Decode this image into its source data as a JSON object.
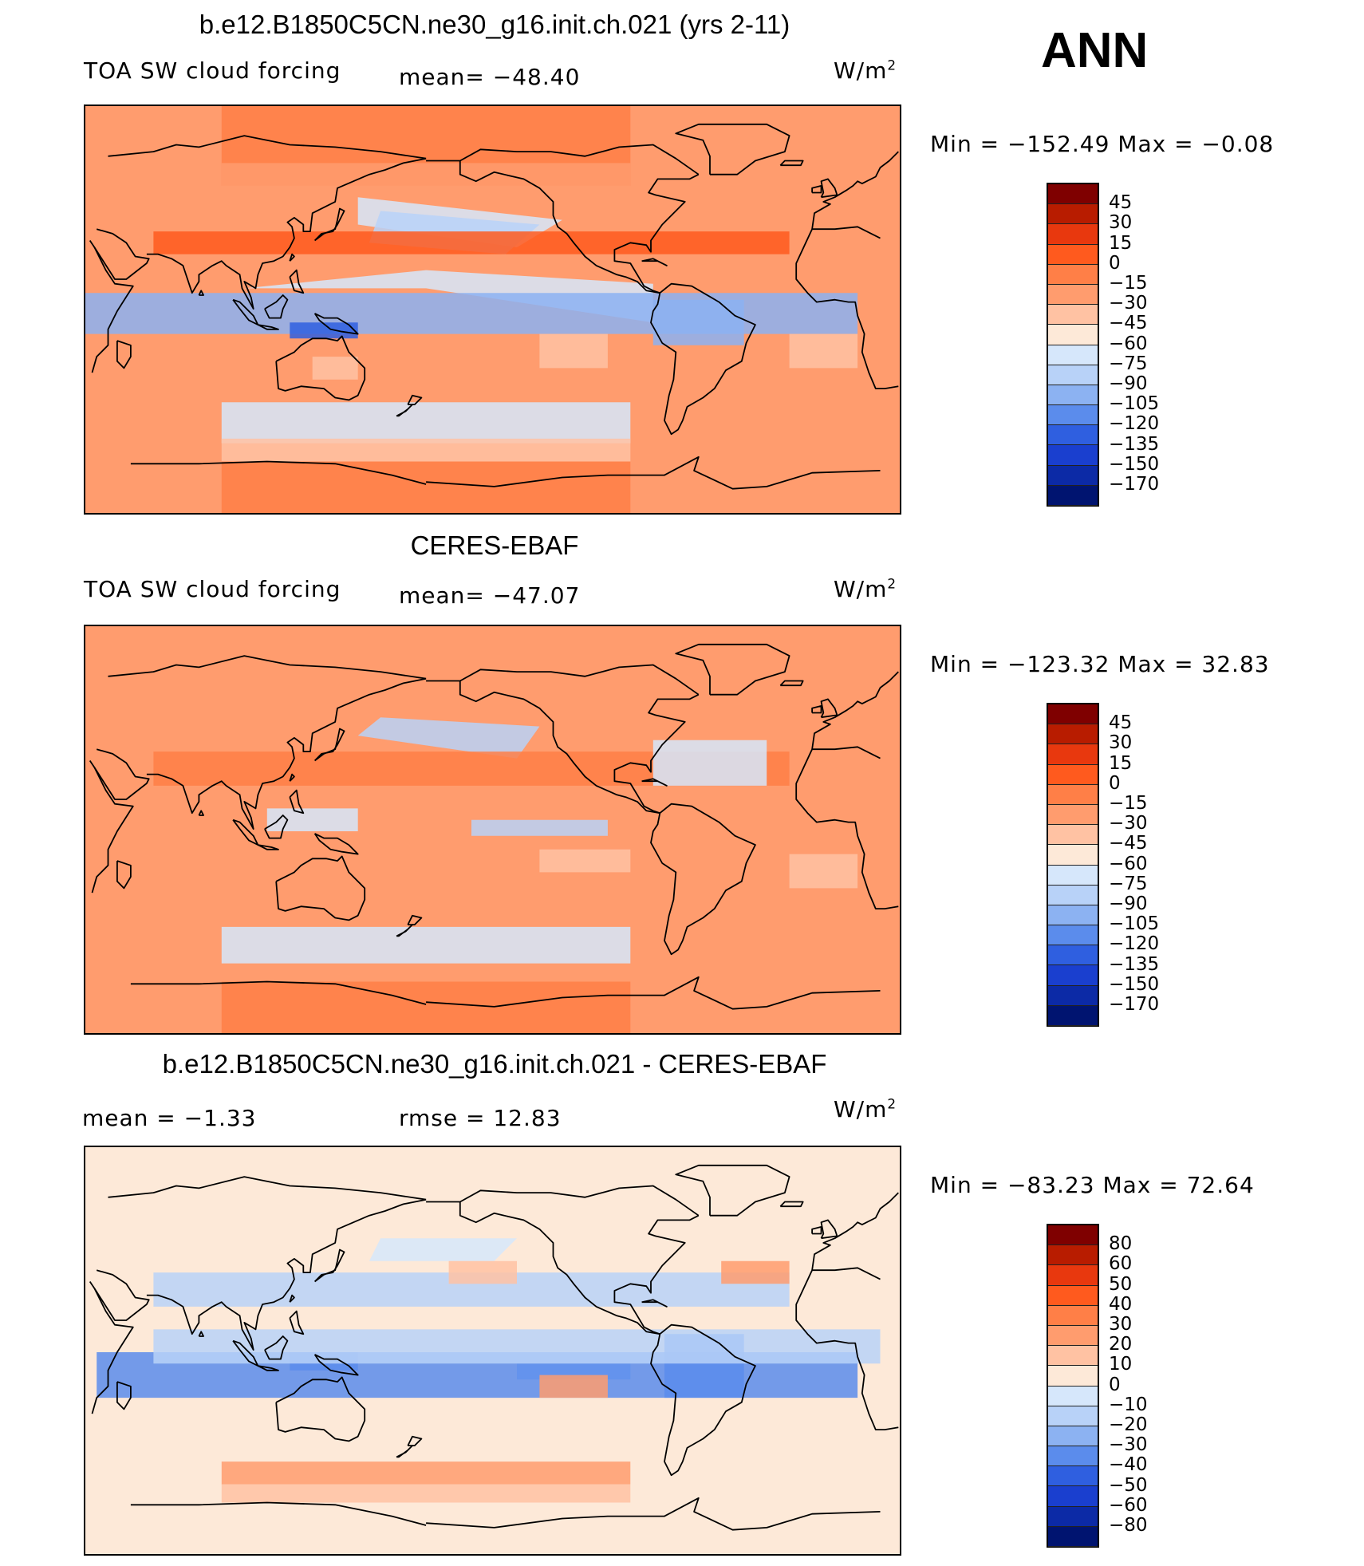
{
  "season": "ANN",
  "panels": [
    {
      "title": "b.e12.B1850C5CN.ne30_g16.init.ch.021 (yrs 2-11)",
      "left_label": "TOA SW cloud forcing",
      "mid_label": "mean= −48.40",
      "units_base": "W/m",
      "units_exp": "2",
      "minmax": "Min = −152.49 Max =  −0.08",
      "levels": [
        "45",
        "30",
        "15",
        "0",
        "−15",
        "−30",
        "−45",
        "−60",
        "−75",
        "−90",
        "−105",
        "−120",
        "−135",
        "−150",
        "−170"
      ]
    },
    {
      "title": "CERES-EBAF",
      "left_label": "TOA SW cloud forcing",
      "mid_label": "mean= −47.07",
      "units_base": "W/m",
      "units_exp": "2",
      "minmax": "Min = −123.32 Max =  32.83",
      "levels": [
        "45",
        "30",
        "15",
        "0",
        "−15",
        "−30",
        "−45",
        "−60",
        "−75",
        "−90",
        "−105",
        "−120",
        "−135",
        "−150",
        "−170"
      ]
    },
    {
      "title": "b.e12.B1850C5CN.ne30_g16.init.ch.021 - CERES-EBAF",
      "left_label": "mean =  −1.33",
      "mid_label": "rmse =  12.83",
      "units_base": "W/m",
      "units_exp": "2",
      "minmax": "Min = −83.23 Max =  72.64",
      "levels": [
        "80",
        "60",
        "50",
        "40",
        "30",
        "20",
        "10",
        "0",
        "−10",
        "−20",
        "−30",
        "−40",
        "−50",
        "−60",
        "−80"
      ]
    }
  ],
  "colors": {
    "palette": [
      "#7f0000",
      "#b81c00",
      "#e8380e",
      "#ff5a1e",
      "#ff7f47",
      "#ff9c6e",
      "#ffc2a3",
      "#fde9d8",
      "#d6e7fb",
      "#b8d2f8",
      "#8cb2f2",
      "#5b8cec",
      "#2f5fe0",
      "#1a3fcf",
      "#0c2aa6",
      "#001470"
    ],
    "land_line": "#000000"
  }
}
